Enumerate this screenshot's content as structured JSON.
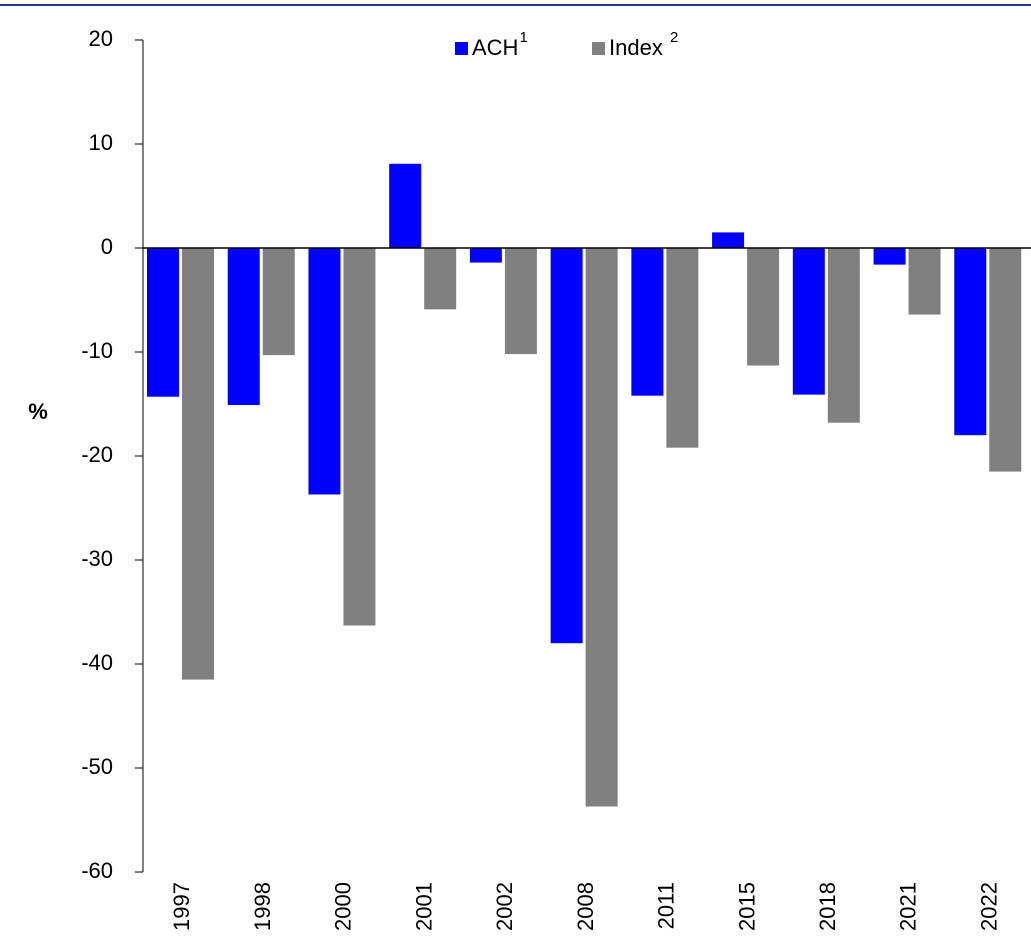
{
  "chart_data": {
    "type": "bar",
    "y_label": "%",
    "categories": [
      "1997",
      "1998",
      "2000",
      "2001",
      "2002",
      "2008",
      "2011",
      "2015",
      "2018",
      "2021",
      "2022"
    ],
    "series": [
      {
        "name": "ACH",
        "name_superscript": "1",
        "color": "#0000ff",
        "values": [
          -14.3,
          -15.1,
          -23.7,
          8.1,
          -1.4,
          -38,
          -14.2,
          1.5,
          -14.1,
          -1.6,
          -18
        ]
      },
      {
        "name": "Index ",
        "name_superscript": "2",
        "color": "#808080",
        "values": [
          -41.5,
          -10.3,
          -36.3,
          -5.9,
          -10.2,
          -53.7,
          -19.2,
          -11.3,
          -16.8,
          -6.4,
          -21.5
        ]
      }
    ],
    "ylim": [
      -60,
      20
    ],
    "yticks": [
      -60,
      -50,
      -40,
      -30,
      -20,
      -10,
      0,
      10,
      20
    ],
    "legend": "top"
  }
}
